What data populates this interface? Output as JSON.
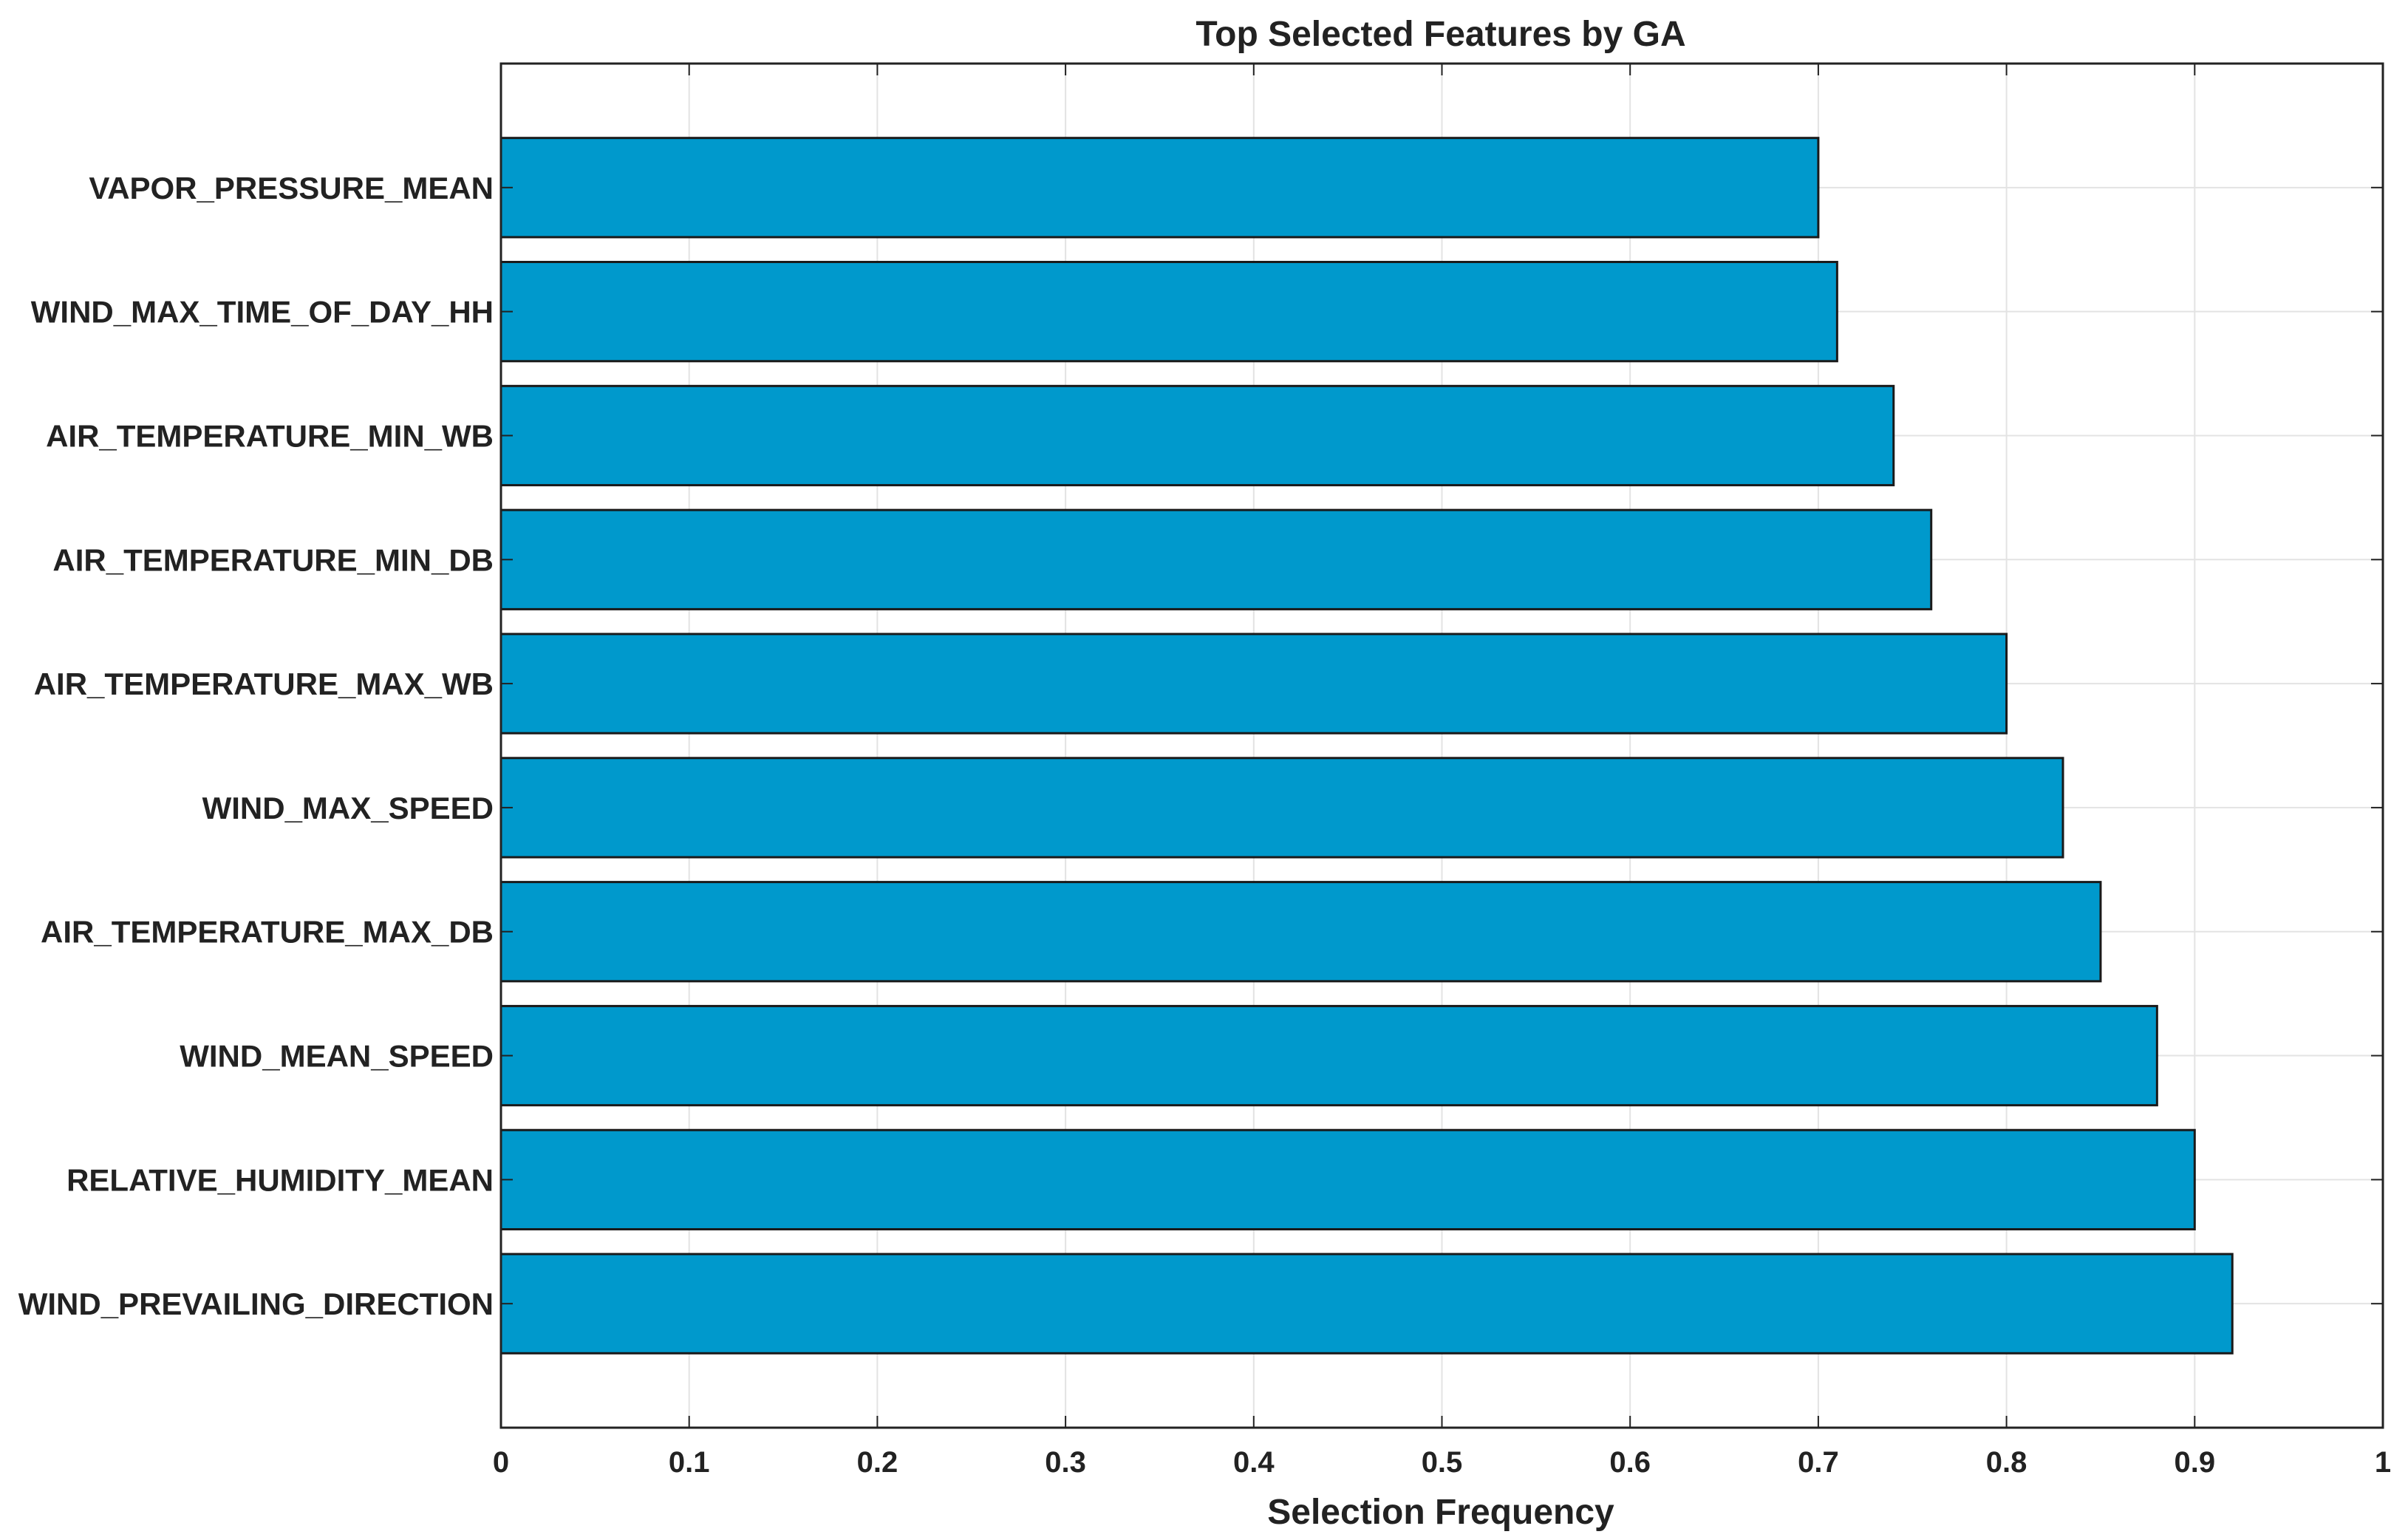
{
  "chart_data": {
    "type": "bar",
    "orientation": "horizontal",
    "title": "Top Selected Features by GA",
    "xlabel": "Selection Frequency",
    "ylabel": "",
    "categories": [
      "VAPOR_PRESSURE_MEAN",
      "WIND_MAX_TIME_OF_DAY_HH",
      "AIR_TEMPERATURE_MIN_WB",
      "AIR_TEMPERATURE_MIN_DB",
      "AIR_TEMPERATURE_MAX_WB",
      "WIND_MAX_SPEED",
      "AIR_TEMPERATURE_MAX_DB",
      "WIND_MEAN_SPEED",
      "RELATIVE_HUMIDITY_MEAN",
      "WIND_PREVAILING_DIRECTION"
    ],
    "values": [
      0.7,
      0.71,
      0.74,
      0.76,
      0.8,
      0.83,
      0.85,
      0.88,
      0.9,
      0.92
    ],
    "xlim": [
      0,
      1
    ],
    "xticks": [
      "0",
      "0.1",
      "0.2",
      "0.3",
      "0.4",
      "0.5",
      "0.6",
      "0.7",
      "0.8",
      "0.9",
      "1"
    ],
    "grid": true,
    "bar_color": "#0099cc",
    "bar_edge_color": "#1a1a1a",
    "grid_color": "#e3e3e3",
    "axis_color": "#222222"
  }
}
